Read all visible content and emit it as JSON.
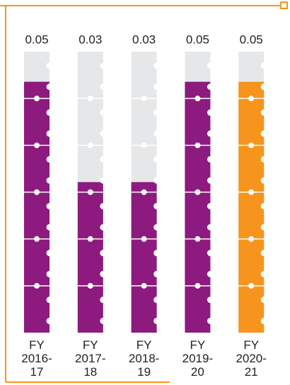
{
  "chart_data": {
    "type": "bar",
    "categories": [
      "FY 2016-17",
      "FY 2017-18",
      "FY 2018-19",
      "FY 2019-20",
      "FY 2020-21"
    ],
    "values": [
      0.05,
      0.03,
      0.03,
      0.05,
      0.05
    ],
    "colors": [
      "#8c1a7f",
      "#8c1a7f",
      "#8c1a7f",
      "#8c1a7f",
      "#f7941d"
    ],
    "background_color": "#e6e7e8",
    "ylim": [
      0,
      0.056
    ]
  }
}
